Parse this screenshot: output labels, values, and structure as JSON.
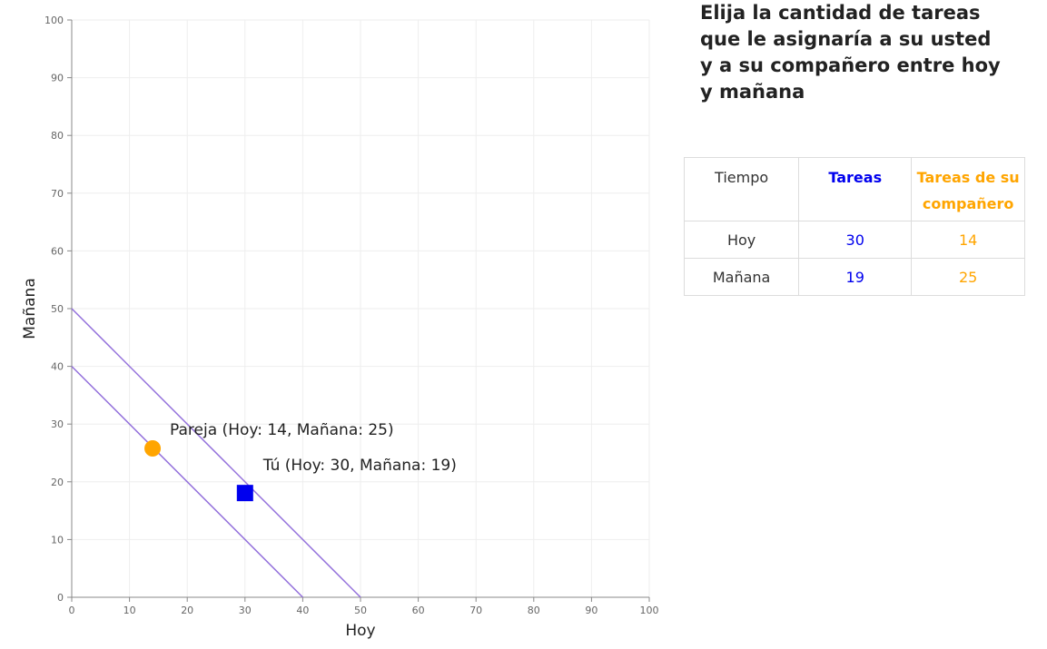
{
  "instruction": {
    "title": "Elija la cantidad de tareas que le asignaría a su usted y a su compañero entre hoy y mañana"
  },
  "table": {
    "headers": {
      "time": "Tiempo",
      "you": "Tareas",
      "partner": "Tareas de su compañero"
    },
    "rows": [
      {
        "time": "Hoy",
        "you": "30",
        "partner": "14"
      },
      {
        "time": "Mañana",
        "you": "19",
        "partner": "25"
      }
    ]
  },
  "colors": {
    "you": "#0000ee",
    "partner": "#ffa500",
    "budget_line": "#9370db",
    "grid": "#eeeeee",
    "axis": "#888888"
  },
  "chart_data": {
    "type": "scatter",
    "xlabel": "Hoy",
    "ylabel": "Mañana",
    "xlim": [
      0,
      100
    ],
    "ylim": [
      0,
      100
    ],
    "xticks": [
      0,
      10,
      20,
      30,
      40,
      50,
      60,
      70,
      80,
      90,
      100
    ],
    "yticks": [
      0,
      10,
      20,
      30,
      40,
      50,
      60,
      70,
      80,
      90,
      100
    ],
    "grid": true,
    "lines": [
      {
        "x": [
          0,
          40
        ],
        "y": [
          40,
          0
        ]
      },
      {
        "x": [
          0,
          50
        ],
        "y": [
          50,
          0
        ]
      }
    ],
    "points": [
      {
        "label": "Pareja (Hoy: 14, Mañana: 25)",
        "x": 14,
        "y": 25,
        "marker": "circle",
        "color": "#ffa500"
      },
      {
        "label": "Tú (Hoy: 30, Mañana: 19)",
        "x": 30,
        "y": 19,
        "marker": "square",
        "color": "#0000ee"
      }
    ]
  }
}
